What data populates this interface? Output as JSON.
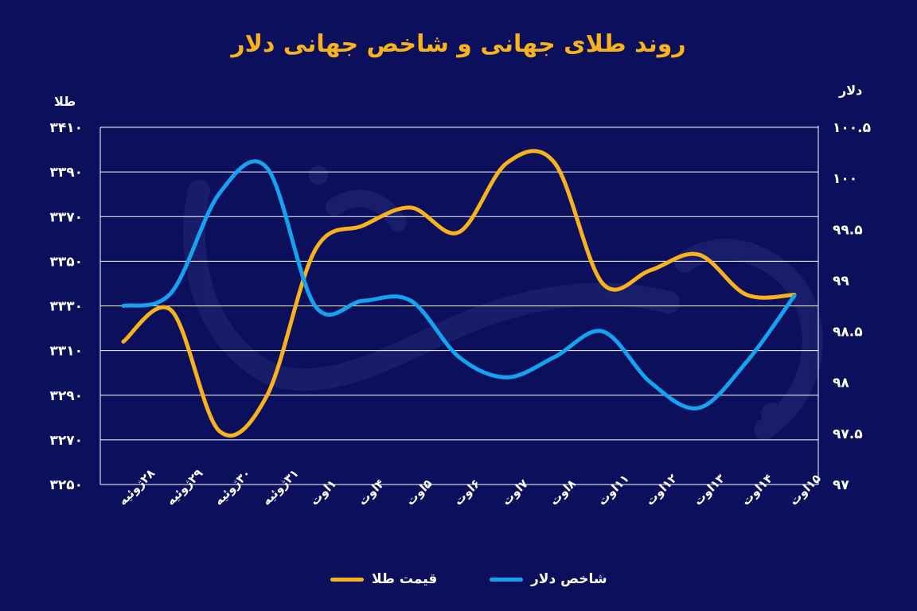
{
  "chart_data": {
    "type": "line",
    "title": "روند طلای جهانی و شاخص جهانی دلار",
    "left_axis_label": "طلا",
    "right_axis_label": "دلار",
    "categories": [
      "۲۸ژوئیه",
      "۲۹ژوئیه",
      "۳۰ژوئیه",
      "۳۱ژوئیه",
      "۱اوت",
      "۴اوت",
      "۵اوت",
      "۶اوت",
      "۷اوت",
      "۸اوت",
      "۱۱اوت",
      "۱۲اوت",
      "۱۳اوت",
      "۱۴اوت",
      "۱۵اوت"
    ],
    "left_ticks": [
      "۳۴۱۰",
      "۳۳۹۰",
      "۳۳۷۰",
      "۳۳۵۰",
      "۳۳۳۰",
      "۳۳۱۰",
      "۳۲۹۰",
      "۳۲۷۰",
      "۳۲۵۰"
    ],
    "right_ticks": [
      "۱۰۰.۵",
      "۱۰۰",
      "۹۹.۵",
      "۹۹",
      "۹۸.۵",
      "۹۸",
      "۹۷.۵",
      "۹۷"
    ],
    "left_ylim": [
      3250,
      3410
    ],
    "right_ylim": [
      97,
      100.5
    ],
    "series": [
      {
        "name": "قیمت طلا",
        "axis": "left",
        "color": "#f7b21c",
        "values": [
          3314,
          3328,
          3274,
          3290,
          3355,
          3366,
          3374,
          3363,
          3394,
          3394,
          3340,
          3346,
          3353,
          3335,
          3335
        ]
      },
      {
        "name": "شاخص دلار",
        "axis": "right",
        "color": "#14a3f0",
        "values": [
          98.75,
          98.88,
          99.85,
          100.1,
          98.75,
          98.8,
          98.8,
          98.25,
          98.05,
          98.25,
          98.5,
          98.0,
          97.75,
          98.2,
          98.85
        ]
      }
    ]
  }
}
